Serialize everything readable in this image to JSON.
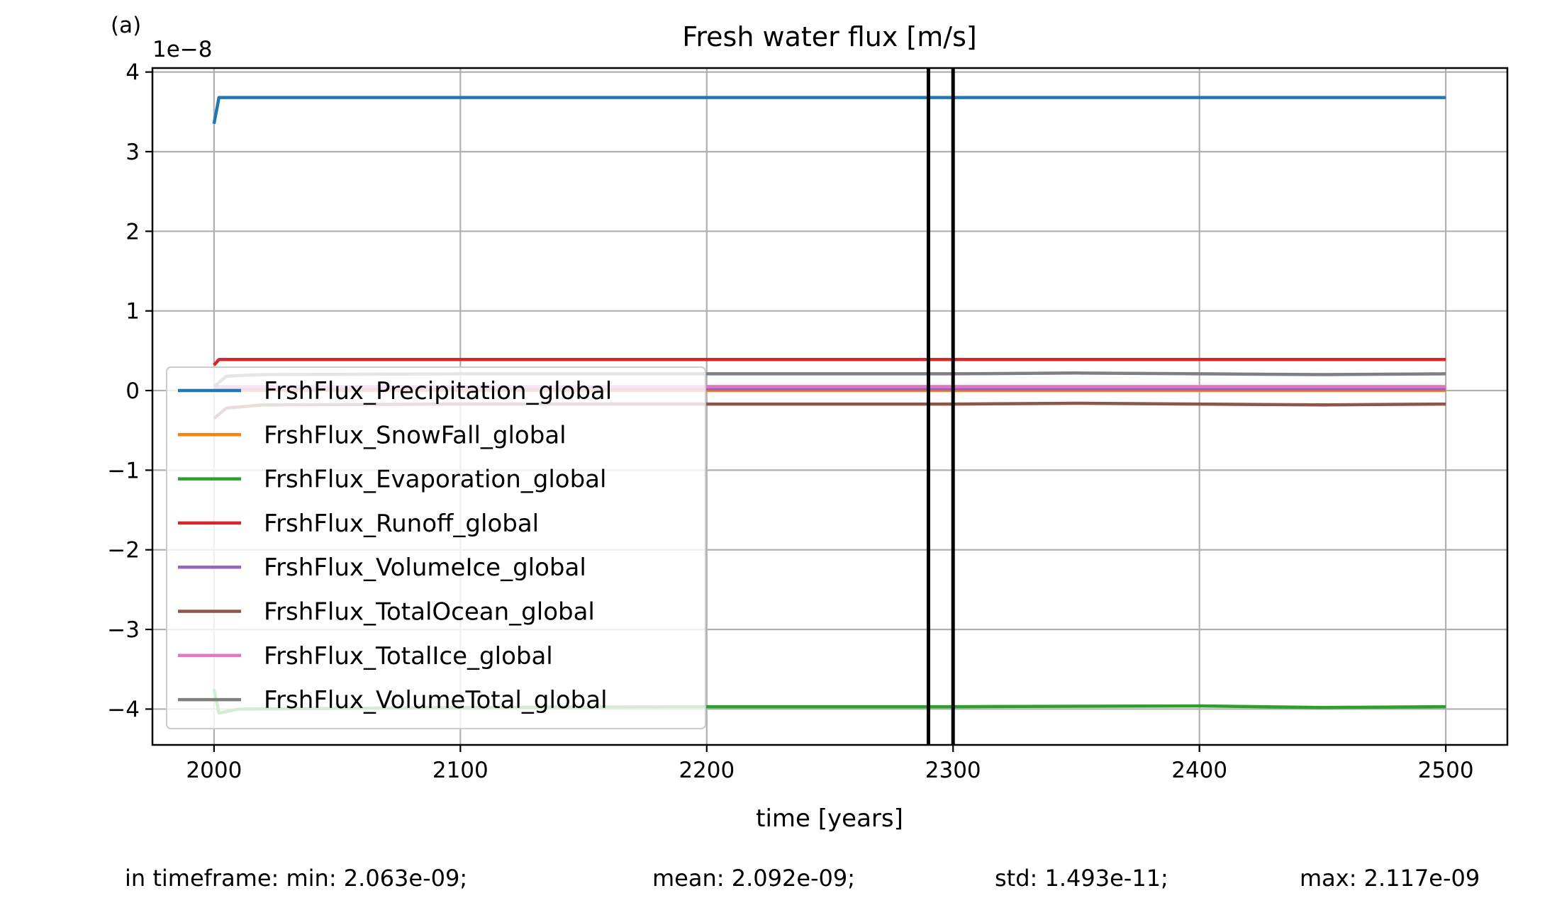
{
  "chart_data": {
    "type": "line",
    "panel_label": "(a)",
    "title": "Fresh water flux [m/s]",
    "xlabel": "time [years]",
    "ylabel": "",
    "y_scale_label": "1e−8",
    "xlim": [
      1975,
      2525
    ],
    "ylim": [
      -4.45,
      4.05
    ],
    "xticks": [
      2000,
      2100,
      2200,
      2300,
      2400,
      2500
    ],
    "yticks": [
      4,
      3,
      2,
      1,
      0,
      -1,
      -2,
      -3,
      -4
    ],
    "ytick_labels": [
      "4",
      "3",
      "2",
      "1",
      "0",
      "−1",
      "−2",
      "−3",
      "−4"
    ],
    "grid": true,
    "legend_position": "center-left",
    "vlines": [
      2290,
      2300
    ],
    "series": [
      {
        "name": "FrshFlux_Precipitation_global",
        "color": "#1f77b4",
        "x": [
          2000,
          2002,
          2100,
          2200,
          2300,
          2400,
          2500
        ],
        "y": [
          3.35,
          3.68,
          3.68,
          3.68,
          3.68,
          3.68,
          3.68
        ]
      },
      {
        "name": "FrshFlux_SnowFall_global",
        "color": "#ff7f0e",
        "x": [
          2000,
          2100,
          2200,
          2300,
          2400,
          2500
        ],
        "y": [
          0.0,
          0.0,
          0.0,
          0.0,
          0.0,
          0.0
        ]
      },
      {
        "name": "FrshFlux_Evaporation_global",
        "color": "#2ca02c",
        "x": [
          2000,
          2002,
          2010,
          2100,
          2200,
          2300,
          2400,
          2450,
          2500
        ],
        "y": [
          -3.75,
          -4.05,
          -4.0,
          -3.98,
          -3.97,
          -3.97,
          -3.96,
          -3.98,
          -3.97
        ]
      },
      {
        "name": "FrshFlux_Runoff_global",
        "color": "#d62728",
        "x": [
          2000,
          2002,
          2100,
          2200,
          2300,
          2400,
          2500
        ],
        "y": [
          0.32,
          0.39,
          0.39,
          0.39,
          0.39,
          0.39,
          0.39
        ]
      },
      {
        "name": "FrshFlux_VolumeIce_global",
        "color": "#9467bd",
        "x": [
          2000,
          2100,
          2200,
          2300,
          2400,
          2500
        ],
        "y": [
          0.02,
          0.02,
          0.02,
          0.02,
          0.02,
          0.02
        ]
      },
      {
        "name": "FrshFlux_TotalOcean_global",
        "color": "#8c564b",
        "x": [
          2000,
          2005,
          2020,
          2100,
          2200,
          2300,
          2350,
          2400,
          2450,
          2500
        ],
        "y": [
          -0.35,
          -0.22,
          -0.18,
          -0.17,
          -0.17,
          -0.17,
          -0.16,
          -0.17,
          -0.18,
          -0.17
        ]
      },
      {
        "name": "FrshFlux_TotalIce_global",
        "color": "#e377c2",
        "x": [
          2000,
          2100,
          2200,
          2300,
          2400,
          2500
        ],
        "y": [
          0.05,
          0.05,
          0.05,
          0.05,
          0.05,
          0.05
        ]
      },
      {
        "name": "FrshFlux_VolumeTotal_global",
        "color": "#7f7f7f",
        "x": [
          2000,
          2005,
          2020,
          2100,
          2200,
          2300,
          2350,
          2400,
          2450,
          2500
        ],
        "y": [
          0.05,
          0.18,
          0.2,
          0.21,
          0.21,
          0.21,
          0.22,
          0.21,
          0.2,
          0.21
        ]
      }
    ],
    "stats": {
      "min": "in timeframe: min: 2.063e-09;",
      "mean": "mean: 2.092e-09;",
      "std": "std: 1.493e-11;",
      "max": "max: 2.117e-09"
    }
  }
}
